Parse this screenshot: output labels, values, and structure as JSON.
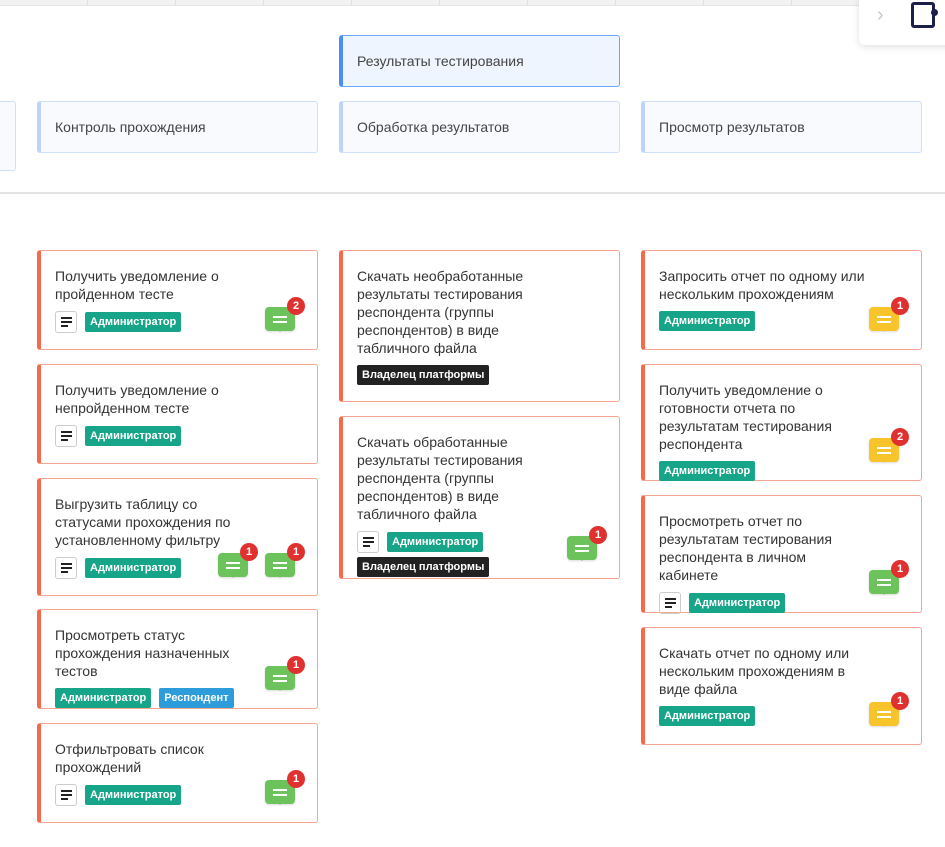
{
  "colors": {
    "accent": "#4a8ef5",
    "card_border": "#f56a4a",
    "admin": "#17a589",
    "owner": "#222222",
    "respondent": "#2d9cdb",
    "comment_green": "#6cc35b",
    "comment_yellow": "#f7c52b",
    "badge": "#e03131"
  },
  "tree": {
    "top": "Результаты тестирования",
    "children": [
      "Контроль прохождения",
      "Обработка результатов",
      "Просмотр результатов"
    ]
  },
  "columns": [
    [
      {
        "title": "Получить уведомление о пройденном тесте",
        "doc": true,
        "tags": [
          "Администратор"
        ],
        "comments": [
          {
            "color": "green",
            "count": "2"
          }
        ]
      },
      {
        "title": "Получить уведомление о непройденном тесте",
        "doc": true,
        "tags": [
          "Администратор"
        ],
        "comments": []
      },
      {
        "title": "Выгрузить таблицу со статусами прохождения по установленному фильтру",
        "doc": true,
        "tags": [
          "Администратор"
        ],
        "comments": [
          {
            "color": "green",
            "count": "1"
          },
          {
            "color": "green",
            "count": "1"
          }
        ]
      },
      {
        "title": "Просмотреть статус прохождения назначенных тестов",
        "doc": false,
        "tags": [
          "Администратор",
          "Респондент"
        ],
        "comments": [
          {
            "color": "green",
            "count": "1"
          }
        ]
      },
      {
        "title": "Отфильтровать список прохождений",
        "doc": true,
        "tags": [
          "Администратор"
        ],
        "comments": [
          {
            "color": "green",
            "count": "1"
          }
        ]
      }
    ],
    [
      {
        "title": "Скачать необработанные результаты тестирования респондента (группы респондентов) в виде табличного файла",
        "doc": false,
        "tags": [
          "Владелец платформы"
        ],
        "comments": []
      },
      {
        "title": "Скачать обработанные результаты тестирования респондента (группы респондентов) в виде табличного файла",
        "doc": true,
        "tags": [
          "Администратор",
          "Владелец платформы"
        ],
        "comments": [
          {
            "color": "green",
            "count": "1"
          }
        ]
      }
    ],
    [
      {
        "title": "Запросить отчет по одному или нескольким прохождениям",
        "doc": false,
        "tags": [
          "Администратор"
        ],
        "comments": [
          {
            "color": "yellow",
            "count": "1"
          }
        ]
      },
      {
        "title": "Получить уведомление о готовности отчета по результатам тестирования респондента",
        "doc": false,
        "tags": [
          "Администратор"
        ],
        "comments": [
          {
            "color": "yellow",
            "count": "2"
          }
        ]
      },
      {
        "title": "Просмотреть отчет по результатам тестирования респондента в личном кабинете",
        "doc": true,
        "tags": [
          "Администратор"
        ],
        "comments": [
          {
            "color": "green",
            "count": "1"
          }
        ]
      },
      {
        "title": "Скачать отчет по одному или нескольким прохождениям в виде файла",
        "doc": false,
        "tags": [
          "Администратор"
        ],
        "comments": [
          {
            "color": "yellow",
            "count": "1"
          }
        ]
      }
    ]
  ]
}
